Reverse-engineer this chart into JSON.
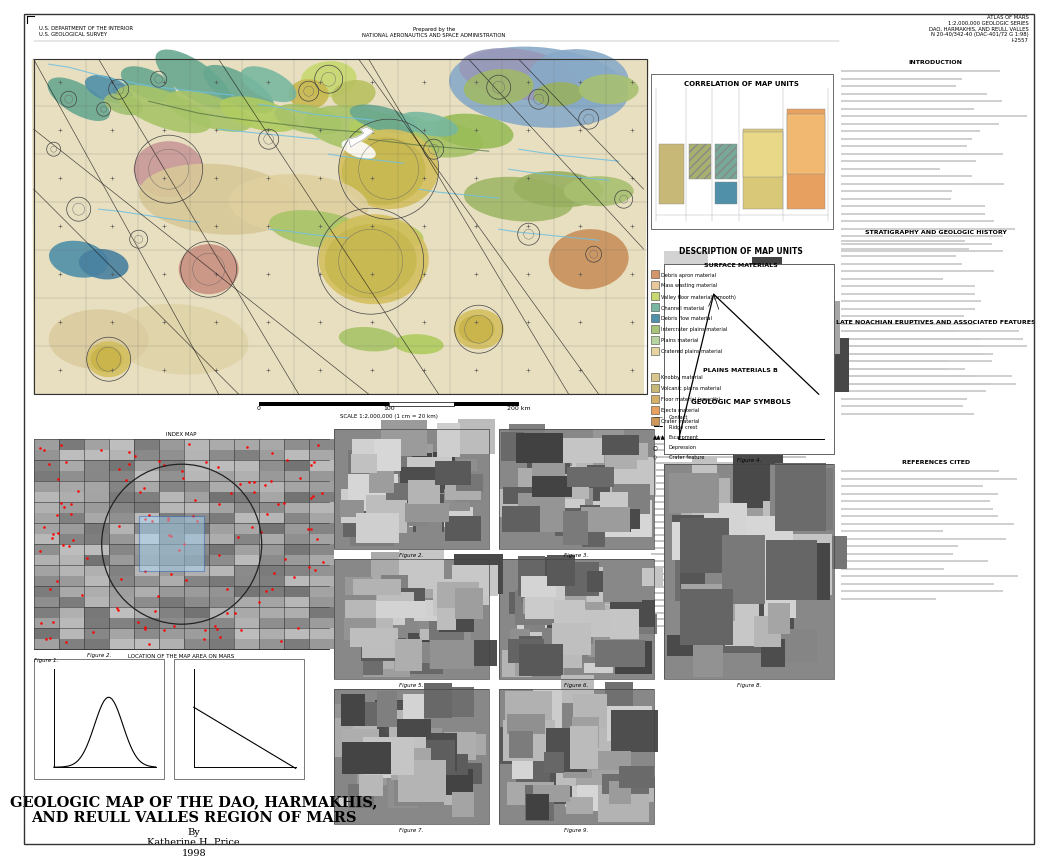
{
  "title_main": "GEOLOGIC MAP OF THE DAO, HARMAKHIS,\nAND REULL VALLES REGION OF MARS",
  "author": "By\nKatherine H. Price\n1998",
  "header_left": "U.S. DEPARTMENT OF THE INTERIOR\nU.S. GEOLOGICAL SURVEY",
  "header_center": "Prepared by the\nNATIONAL AERONAUTICS AND SPACE ADMINISTRATION",
  "header_right": "ATLAS OF MARS\n1:2,000,000 GEOLOGIC SERIES\nDAO, HARMAKHIS, AND REULL VALLES\nN 20-40/342-40 (DAC-401/72 G 1:98)\nI-2557",
  "map_bg": "#e8dfc0",
  "map_border": "#333333",
  "page_bg": "#ffffff",
  "map_units": [
    {
      "color": "#d4956a",
      "label": "Debris apron material"
    },
    {
      "color": "#e8c89a",
      "label": "Mass wasting material"
    },
    {
      "color": "#c8d870",
      "label": "Valley floor material (smooth)"
    },
    {
      "color": "#78b8a0",
      "label": "Channel material"
    },
    {
      "color": "#5090a8",
      "label": "Debris flow material"
    },
    {
      "color": "#a8c478",
      "label": "Intercrater plains material"
    },
    {
      "color": "#b8d4a0",
      "label": "Plains material"
    },
    {
      "color": "#e8d4a0",
      "label": "Cratered plains material"
    },
    {
      "color": "#d8c890",
      "label": "Knobby material"
    },
    {
      "color": "#c8b878",
      "label": "Volcanic plains material"
    },
    {
      "color": "#d4b068",
      "label": "Floor material (smooth)"
    },
    {
      "color": "#e8a060",
      "label": "Ejecta material"
    },
    {
      "color": "#d09858",
      "label": "Crater material"
    }
  ],
  "geo_colors": {
    "plains_tan": "#e0d4a8",
    "plains_light": "#ecddb8",
    "valley_green": "#b8cc68",
    "channel_teal": "#68a890",
    "debris_blue": "#4880a0",
    "mass_waste_tan": "#d8c090",
    "crater_pink": "#c89898",
    "crater_brown": "#c8a870",
    "uplift_purple": "#9898b8",
    "uplift_blue": "#88aac8",
    "green_plains": "#a0b868",
    "orange_apron": "#cc8858"
  }
}
